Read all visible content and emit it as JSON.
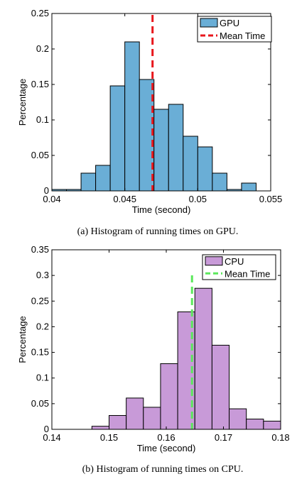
{
  "chart_data": [
    {
      "type": "bar",
      "histogram": true,
      "xlabel": "Time (second)",
      "ylabel": "Percentage",
      "xlim": [
        0.04,
        0.055
      ],
      "ylim": [
        0,
        0.25
      ],
      "xticks": [
        "0.04",
        "0.045",
        "0.05",
        "0.055"
      ],
      "xtick_values": [
        0.04,
        0.045,
        0.05,
        0.055
      ],
      "yticks": [
        "0",
        "0.05",
        "0.1",
        "0.15",
        "0.2",
        "0.25"
      ],
      "ytick_values": [
        0,
        0.05,
        0.1,
        0.15,
        0.2,
        0.25
      ],
      "bin_edges": [
        0.04,
        0.041,
        0.042,
        0.043,
        0.044,
        0.045,
        0.046,
        0.047,
        0.048,
        0.049,
        0.05,
        0.051,
        0.052,
        0.053,
        0.054
      ],
      "values": [
        0.002,
        0.002,
        0.025,
        0.036,
        0.148,
        0.21,
        0.157,
        0.115,
        0.122,
        0.077,
        0.062,
        0.025,
        0.002,
        0.011
      ],
      "bar_color": "#6aaed6",
      "mean": 0.0469,
      "mean_color": "#e8161c",
      "legend": [
        {
          "label": "GPU",
          "kind": "patch"
        },
        {
          "label": "Mean Time",
          "kind": "dash"
        }
      ],
      "legend_position": "top-right",
      "grid": false,
      "caption": "(a)  Histogram of running times on GPU."
    },
    {
      "type": "bar",
      "histogram": true,
      "xlabel": "Time (second)",
      "ylabel": "Percentage",
      "xlim": [
        0.14,
        0.18
      ],
      "ylim": [
        0,
        0.35
      ],
      "xticks": [
        "0.14",
        "0.15",
        "0.16",
        "0.17",
        "0.18"
      ],
      "xtick_values": [
        0.14,
        0.15,
        0.16,
        0.17,
        0.18
      ],
      "yticks": [
        "0",
        "0.05",
        "0.1",
        "0.15",
        "0.2",
        "0.25",
        "0.3",
        "0.35"
      ],
      "ytick_values": [
        0,
        0.05,
        0.1,
        0.15,
        0.2,
        0.25,
        0.3,
        0.35
      ],
      "bin_edges": [
        0.147,
        0.15,
        0.153,
        0.156,
        0.159,
        0.162,
        0.165,
        0.168,
        0.171,
        0.174,
        0.177,
        0.18
      ],
      "values": [
        0.006,
        0.027,
        0.061,
        0.043,
        0.128,
        0.229,
        0.275,
        0.164,
        0.04,
        0.02,
        0.016
      ],
      "bar_color": "#c89ad8",
      "mean": 0.1645,
      "mean_color": "#5ce85c",
      "legend": [
        {
          "label": "CPU",
          "kind": "patch"
        },
        {
          "label": "Mean Time",
          "kind": "dash"
        }
      ],
      "legend_position": "top-right",
      "grid": false,
      "caption": "(b)  Histogram of running times on CPU."
    }
  ]
}
